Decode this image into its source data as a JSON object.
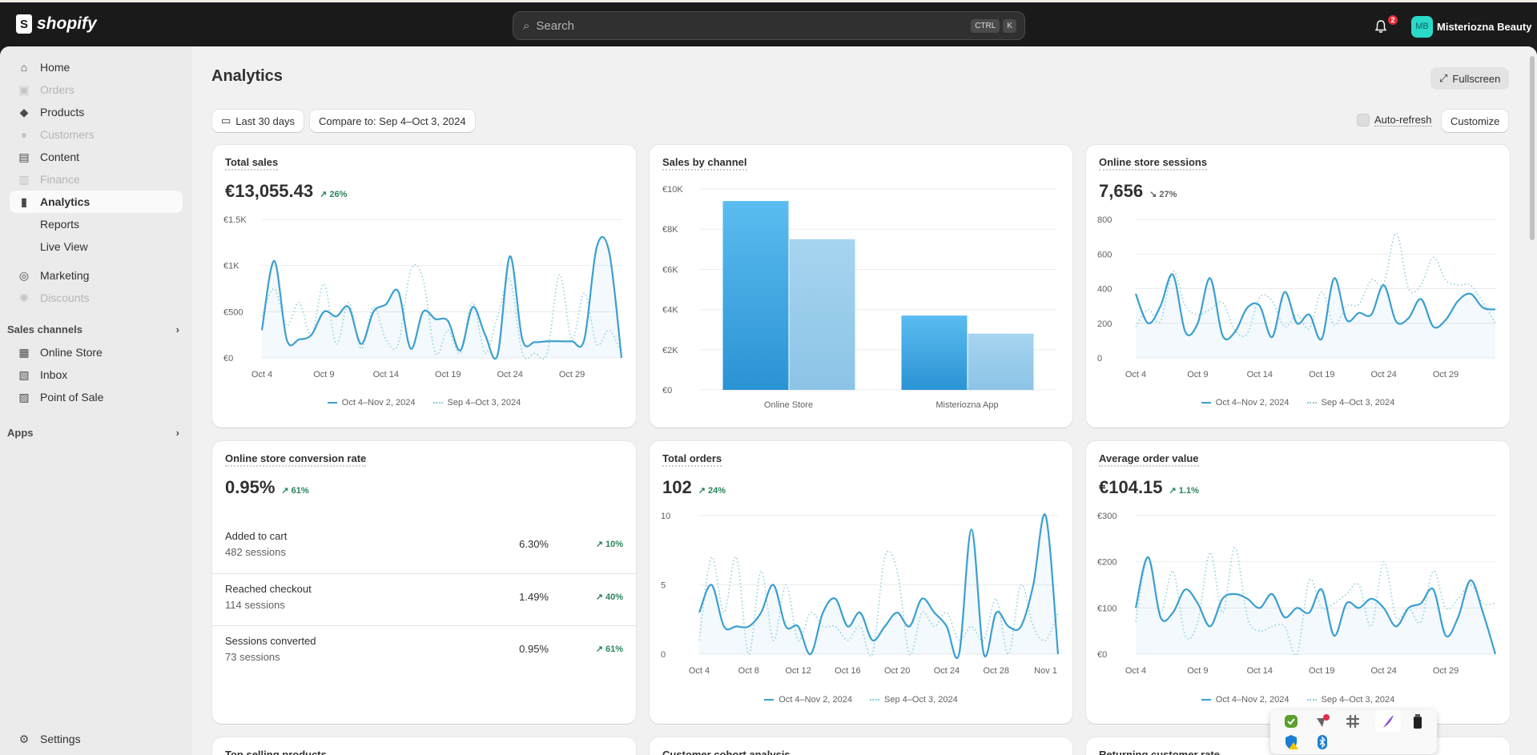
{
  "topbar": {
    "brand": "shopify",
    "search_placeholder": "Search",
    "keys": [
      "CTRL",
      "K"
    ],
    "notification_count": "2",
    "avatar_initials": "MB",
    "store_name": "Misteriozna Beauty"
  },
  "sidebar": {
    "items": [
      {
        "label": "Home",
        "icon": "⌂"
      },
      {
        "label": "Orders",
        "icon": "▣"
      },
      {
        "label": "Products",
        "icon": "◆"
      },
      {
        "label": "Customers",
        "icon": "●"
      },
      {
        "label": "Content",
        "icon": "▤"
      },
      {
        "label": "Finance",
        "icon": "▥"
      },
      {
        "label": "Analytics",
        "icon": "▮"
      },
      {
        "label": "Reports"
      },
      {
        "label": "Live View"
      },
      {
        "label": "Marketing",
        "icon": "◎"
      },
      {
        "label": "Discounts",
        "icon": "✺"
      }
    ],
    "sales_channels_label": "Sales channels",
    "channels": [
      {
        "label": "Online Store",
        "icon": "▦"
      },
      {
        "label": "Inbox",
        "icon": "▧"
      },
      {
        "label": "Point of Sale",
        "icon": "▨"
      }
    ],
    "apps_label": "Apps",
    "settings_label": "Settings"
  },
  "page": {
    "title": "Analytics",
    "fullscreen": "Fullscreen",
    "date_range": "Last 30 days",
    "compare": "Compare to: Sep 4–Oct 3, 2024",
    "auto_refresh": "Auto-refresh",
    "customize": "Customize"
  },
  "legend": {
    "current": "Oct 4–Nov 2, 2024",
    "previous": "Sep 4–Oct 3, 2024"
  },
  "cards": {
    "total_sales": {
      "title": "Total sales",
      "value": "€13,055.43",
      "delta": "↗ 26%"
    },
    "sales_by_channel": {
      "title": "Sales by channel"
    },
    "sessions": {
      "title": "Online store sessions",
      "value": "7,656",
      "delta": "↘ 27%"
    },
    "conversion": {
      "title": "Online store conversion rate",
      "value": "0.95%",
      "delta": "↗ 61%",
      "rows": [
        {
          "label": "Added to cart",
          "sessions": "482 sessions",
          "rate": "6.30%",
          "change": "↗ 10%"
        },
        {
          "label": "Reached checkout",
          "sessions": "114 sessions",
          "rate": "1.49%",
          "change": "↗ 40%"
        },
        {
          "label": "Sessions converted",
          "sessions": "73 sessions",
          "rate": "0.95%",
          "change": "↗ 61%"
        }
      ]
    },
    "orders": {
      "title": "Total orders",
      "value": "102",
      "delta": "↗ 24%"
    },
    "aov": {
      "title": "Average order value",
      "value": "€104.15",
      "delta": "↗ 1.1%"
    },
    "top_products": {
      "title": "Top selling products"
    },
    "cohort": {
      "title": "Customer cohort analysis"
    },
    "returning": {
      "title": "Returning customer rate"
    }
  },
  "tray": {
    "icons": [
      "shield-check",
      "vpn-error",
      "slack",
      "feather",
      "usb-drive",
      "defender-warning",
      "bluetooth"
    ]
  },
  "colors": {
    "current": "#3b9fd0",
    "previous": "#8fcfdc",
    "positive": "#29845a"
  },
  "chart_data": [
    {
      "id": "total_sales",
      "type": "line",
      "ylim": [
        0,
        1500
      ],
      "yticks": [
        0,
        500,
        1000,
        1500
      ],
      "ytick_labels": [
        "€0",
        "€500",
        "€1K",
        "€1.5K"
      ],
      "xtick_index": [
        0,
        5,
        10,
        15,
        20,
        25
      ],
      "xtick_labels": [
        "Oct 4",
        "Oct 9",
        "Oct 14",
        "Oct 19",
        "Oct 24",
        "Oct 29"
      ],
      "series": [
        {
          "name": "Oct 4–Nov 2, 2024",
          "values": [
            300,
            1050,
            200,
            200,
            250,
            500,
            450,
            550,
            150,
            500,
            580,
            720,
            100,
            500,
            420,
            400,
            80,
            550,
            250,
            30,
            1100,
            200,
            170,
            180,
            180,
            180,
            200,
            1200,
            1150,
            0
          ]
        },
        {
          "name": "Sep 4–Oct 3, 2024",
          "values": [
            450,
            750,
            350,
            600,
            250,
            800,
            150,
            600,
            100,
            550,
            200,
            150,
            950,
            850,
            50,
            300,
            50,
            600,
            50,
            450,
            850,
            50,
            50,
            50,
            900,
            200,
            700,
            150,
            300,
            50
          ]
        }
      ]
    },
    {
      "id": "sales_by_channel",
      "type": "bar",
      "ylim": [
        0,
        10000
      ],
      "yticks": [
        0,
        2000,
        4000,
        6000,
        8000,
        10000
      ],
      "ytick_labels": [
        "€0",
        "€2K",
        "€4K",
        "€6K",
        "€8K",
        "€10K"
      ],
      "categories": [
        "Online Store",
        "Misteriozna App"
      ],
      "series": [
        {
          "name": "Oct 4–Nov 2, 2024",
          "values": [
            9400,
            3700
          ]
        },
        {
          "name": "Sep 4–Oct 3, 2024",
          "values": [
            7500,
            2800
          ]
        }
      ]
    },
    {
      "id": "sessions",
      "type": "line",
      "ylim": [
        0,
        800
      ],
      "yticks": [
        0,
        200,
        400,
        600,
        800
      ],
      "ytick_labels": [
        "0",
        "200",
        "400",
        "600",
        "800"
      ],
      "xtick_index": [
        0,
        5,
        10,
        15,
        20,
        25
      ],
      "xtick_labels": [
        "Oct 4",
        "Oct 9",
        "Oct 14",
        "Oct 19",
        "Oct 24",
        "Oct 29"
      ],
      "series": [
        {
          "name": "Oct 4–Nov 2, 2024",
          "values": [
            370,
            200,
            300,
            480,
            150,
            200,
            460,
            130,
            150,
            290,
            300,
            120,
            380,
            200,
            250,
            110,
            460,
            220,
            260,
            250,
            420,
            210,
            230,
            340,
            180,
            220,
            330,
            370,
            290,
            280
          ]
        },
        {
          "name": "Sep 4–Oct 3, 2024",
          "values": [
            180,
            280,
            210,
            500,
            300,
            250,
            280,
            320,
            160,
            140,
            350,
            330,
            180,
            250,
            170,
            380,
            190,
            300,
            310,
            450,
            430,
            720,
            400,
            420,
            580,
            450,
            420,
            420,
            320,
            200
          ]
        }
      ]
    },
    {
      "id": "orders",
      "type": "line",
      "ylim": [
        0,
        10
      ],
      "yticks": [
        0,
        5,
        10
      ],
      "ytick_labels": [
        "0",
        "5",
        "10"
      ],
      "xtick_index": [
        0,
        4,
        8,
        12,
        16,
        20,
        24,
        28
      ],
      "xtick_labels": [
        "Oct 4",
        "Oct 8",
        "Oct 12",
        "Oct 16",
        "Oct 20",
        "Oct 24",
        "Oct 28",
        "Nov 1"
      ],
      "series": [
        {
          "name": "Oct 4–Nov 2, 2024",
          "values": [
            3,
            5,
            2,
            2,
            2,
            3,
            5,
            2,
            2,
            0,
            3,
            4,
            2,
            3,
            1,
            2,
            3,
            2,
            4,
            3,
            2,
            0,
            9,
            0,
            3,
            2,
            2,
            5,
            10,
            0
          ]
        },
        {
          "name": "Sep 4–Oct 3, 2024",
          "values": [
            1,
            7,
            3,
            7,
            0,
            6,
            1,
            5,
            1,
            3,
            2,
            2,
            1,
            2,
            0,
            7,
            6,
            0,
            3,
            2,
            3,
            1,
            2,
            1,
            4,
            0,
            5,
            2,
            1,
            3
          ]
        }
      ]
    },
    {
      "id": "aov",
      "type": "line",
      "ylim": [
        0,
        300
      ],
      "yticks": [
        0,
        100,
        200,
        300
      ],
      "ytick_labels": [
        "€0",
        "€100",
        "€200",
        "€300"
      ],
      "xtick_index": [
        0,
        5,
        10,
        15,
        20,
        25
      ],
      "xtick_labels": [
        "Oct 4",
        "Oct 9",
        "Oct 14",
        "Oct 19",
        "Oct 24",
        "Oct 29"
      ],
      "series": [
        {
          "name": "Oct 4–Nov 2, 2024",
          "values": [
            100,
            210,
            80,
            90,
            140,
            110,
            60,
            120,
            130,
            120,
            100,
            130,
            80,
            100,
            90,
            140,
            40,
            110,
            100,
            120,
            100,
            60,
            100,
            110,
            140,
            40,
            80,
            160,
            90,
            0
          ]
        },
        {
          "name": "Sep 4–Oct 3, 2024",
          "values": [
            70,
            210,
            90,
            180,
            40,
            70,
            220,
            90,
            230,
            80,
            50,
            60,
            60,
            0,
            160,
            100,
            110,
            130,
            150,
            60,
            200,
            80,
            100,
            70,
            180,
            100,
            120,
            150,
            110,
            110
          ]
        }
      ]
    }
  ]
}
